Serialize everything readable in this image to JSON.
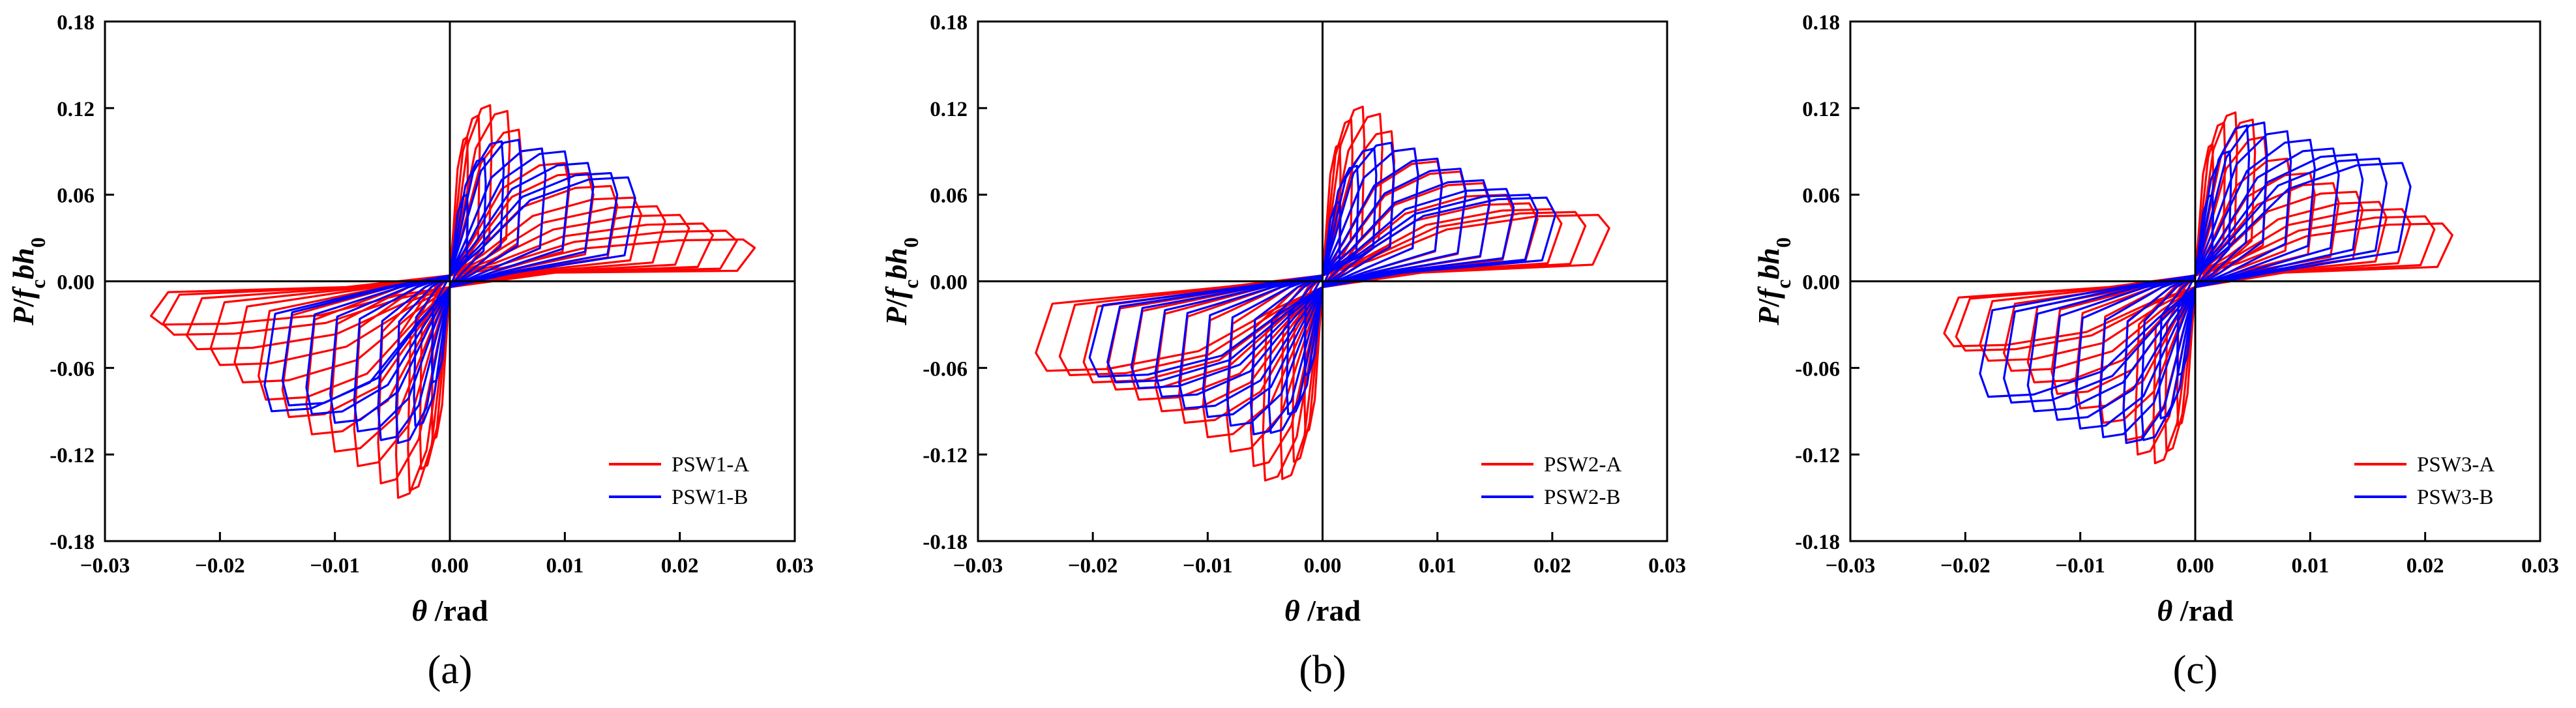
{
  "chart_data": [
    {
      "type": "line",
      "subplot_label": "a",
      "caption": "(a)",
      "ylabel": "P/f_c bh_0",
      "xlabel": "θ /rad",
      "xlabel_symbol": "θ",
      "xlabel_unit": " /rad",
      "ylabel_parts": {
        "P": "P",
        "slash": "/",
        "f": "f",
        "f_sub": "c",
        "bh": "bh",
        "h_sub": "0"
      },
      "xlim": [
        -0.03,
        0.03
      ],
      "ylim": [
        -0.18,
        0.18
      ],
      "xticks": [
        "−0.03",
        "−0.02",
        "−0.01",
        "0.00",
        "0.01",
        "0.02",
        "0.03"
      ],
      "yticks": [
        "0.18",
        "0.12",
        "0.06",
        "0.00",
        "-0.06",
        "-0.12",
        "-0.18"
      ],
      "legend_position": "bottom-right",
      "series": [
        {
          "name": "PSW1-A",
          "color": "#ff0000",
          "pos_peaks": [
            [
              0.0015,
              0.1
            ],
            [
              0.0025,
              0.115
            ],
            [
              0.0035,
              0.122
            ],
            [
              0.005,
              0.118
            ],
            [
              0.006,
              0.105
            ],
            [
              0.008,
              0.092
            ],
            [
              0.01,
              0.082
            ],
            [
              0.012,
              0.075
            ],
            [
              0.014,
              0.066
            ],
            [
              0.016,
              0.058
            ],
            [
              0.018,
              0.052
            ],
            [
              0.02,
              0.046
            ],
            [
              0.022,
              0.04
            ],
            [
              0.024,
              0.035
            ],
            [
              0.0255,
              0.029
            ]
          ],
          "neg_peaks": [
            [
              -0.0015,
              -0.11
            ],
            [
              -0.0025,
              -0.13
            ],
            [
              -0.0035,
              -0.145
            ],
            [
              -0.0045,
              -0.15
            ],
            [
              -0.006,
              -0.14
            ],
            [
              -0.008,
              -0.128
            ],
            [
              -0.01,
              -0.118
            ],
            [
              -0.012,
              -0.106
            ],
            [
              -0.014,
              -0.094
            ],
            [
              -0.016,
              -0.082
            ],
            [
              -0.018,
              -0.07
            ],
            [
              -0.02,
              -0.058
            ],
            [
              -0.022,
              -0.047
            ],
            [
              -0.024,
              -0.037
            ],
            [
              -0.025,
              -0.03
            ]
          ]
        },
        {
          "name": "PSW1-B",
          "color": "#0000ff",
          "pos_peaks": [
            [
              0.0015,
              0.06
            ],
            [
              0.003,
              0.085
            ],
            [
              0.0045,
              0.097
            ],
            [
              0.006,
              0.098
            ],
            [
              0.008,
              0.092
            ],
            [
              0.01,
              0.09
            ],
            [
              0.012,
              0.082
            ],
            [
              0.014,
              0.075
            ],
            [
              0.0155,
              0.072
            ]
          ],
          "neg_peaks": [
            [
              -0.0015,
              -0.07
            ],
            [
              -0.003,
              -0.1
            ],
            [
              -0.0045,
              -0.112
            ],
            [
              -0.006,
              -0.11
            ],
            [
              -0.008,
              -0.104
            ],
            [
              -0.01,
              -0.098
            ],
            [
              -0.012,
              -0.092
            ],
            [
              -0.014,
              -0.086
            ],
            [
              -0.0155,
              -0.09
            ]
          ]
        }
      ]
    },
    {
      "type": "line",
      "subplot_label": "b",
      "caption": "(b)",
      "ylabel": "P/f_c bh_0",
      "xlabel": "θ /rad",
      "xlabel_symbol": "θ",
      "xlabel_unit": " /rad",
      "ylabel_parts": {
        "P": "P",
        "slash": "/",
        "f": "f",
        "f_sub": "c",
        "bh": "bh",
        "h_sub": "0"
      },
      "xlim": [
        -0.03,
        0.03
      ],
      "ylim": [
        -0.18,
        0.18
      ],
      "xticks": [
        "−0.03",
        "−0.02",
        "−0.01",
        "0.00",
        "0.01",
        "0.02",
        "0.03"
      ],
      "yticks": [
        "0.18",
        "0.12",
        "0.06",
        "0.00",
        "-0.06",
        "-0.12",
        "-0.18"
      ],
      "legend_position": "bottom-right",
      "series": [
        {
          "name": "PSW2-A",
          "color": "#ff0000",
          "pos_peaks": [
            [
              0.0015,
              0.095
            ],
            [
              0.0025,
              0.112
            ],
            [
              0.0035,
              0.121
            ],
            [
              0.005,
              0.116
            ],
            [
              0.006,
              0.104
            ],
            [
              0.008,
              0.092
            ],
            [
              0.01,
              0.083
            ],
            [
              0.012,
              0.076
            ],
            [
              0.014,
              0.068
            ],
            [
              0.016,
              0.06
            ],
            [
              0.018,
              0.054
            ],
            [
              0.02,
              0.05
            ],
            [
              0.022,
              0.048
            ],
            [
              0.024,
              0.046
            ]
          ],
          "neg_peaks": [
            [
              -0.0015,
              -0.105
            ],
            [
              -0.0025,
              -0.125
            ],
            [
              -0.0035,
              -0.137
            ],
            [
              -0.005,
              -0.138
            ],
            [
              -0.006,
              -0.128
            ],
            [
              -0.008,
              -0.118
            ],
            [
              -0.01,
              -0.108
            ],
            [
              -0.012,
              -0.098
            ],
            [
              -0.014,
              -0.09
            ],
            [
              -0.016,
              -0.082
            ],
            [
              -0.018,
              -0.075
            ],
            [
              -0.02,
              -0.07
            ],
            [
              -0.022,
              -0.065
            ],
            [
              -0.024,
              -0.062
            ]
          ]
        },
        {
          "name": "PSW2-B",
          "color": "#0000ff",
          "pos_peaks": [
            [
              0.0015,
              0.055
            ],
            [
              0.003,
              0.08
            ],
            [
              0.0045,
              0.092
            ],
            [
              0.006,
              0.096
            ],
            [
              0.008,
              0.092
            ],
            [
              0.01,
              0.085
            ],
            [
              0.012,
              0.078
            ],
            [
              0.014,
              0.07
            ],
            [
              0.016,
              0.064
            ],
            [
              0.018,
              0.06
            ],
            [
              0.0195,
              0.058
            ]
          ],
          "neg_peaks": [
            [
              -0.0015,
              -0.065
            ],
            [
              -0.003,
              -0.092
            ],
            [
              -0.0045,
              -0.105
            ],
            [
              -0.006,
              -0.106
            ],
            [
              -0.008,
              -0.1
            ],
            [
              -0.01,
              -0.094
            ],
            [
              -0.012,
              -0.088
            ],
            [
              -0.014,
              -0.08
            ],
            [
              -0.016,
              -0.074
            ],
            [
              -0.018,
              -0.07
            ],
            [
              -0.0195,
              -0.066
            ]
          ]
        }
      ]
    },
    {
      "type": "line",
      "subplot_label": "c",
      "caption": "(c)",
      "ylabel": "P/f_c bh_0",
      "xlabel": "θ /rad",
      "xlabel_symbol": "θ",
      "xlabel_unit": " /rad",
      "ylabel_parts": {
        "P": "P",
        "slash": "/",
        "f": "f",
        "f_sub": "c",
        "bh": "bh",
        "h_sub": "0"
      },
      "xlim": [
        -0.03,
        0.03
      ],
      "ylim": [
        -0.18,
        0.18
      ],
      "xticks": [
        "−0.03",
        "−0.02",
        "−0.01",
        "0.00",
        "0.01",
        "0.02",
        "0.03"
      ],
      "yticks": [
        "0.18",
        "0.12",
        "0.06",
        "0.00",
        "-0.06",
        "-0.12",
        "-0.18"
      ],
      "legend_position": "bottom-right",
      "series": [
        {
          "name": "PSW3-A",
          "color": "#ff0000",
          "pos_peaks": [
            [
              0.0015,
              0.095
            ],
            [
              0.0025,
              0.11
            ],
            [
              0.0035,
              0.117
            ],
            [
              0.005,
              0.112
            ],
            [
              0.006,
              0.1
            ],
            [
              0.008,
              0.085
            ],
            [
              0.01,
              0.075
            ],
            [
              0.012,
              0.068
            ],
            [
              0.014,
              0.062
            ],
            [
              0.016,
              0.055
            ],
            [
              0.018,
              0.05
            ],
            [
              0.02,
              0.045
            ],
            [
              0.0215,
              0.04
            ]
          ],
          "neg_peaks": [
            [
              -0.0015,
              -0.1
            ],
            [
              -0.0025,
              -0.118
            ],
            [
              -0.0035,
              -0.126
            ],
            [
              -0.005,
              -0.12
            ],
            [
              -0.006,
              -0.11
            ],
            [
              -0.008,
              -0.098
            ],
            [
              -0.01,
              -0.088
            ],
            [
              -0.012,
              -0.078
            ],
            [
              -0.014,
              -0.07
            ],
            [
              -0.016,
              -0.062
            ],
            [
              -0.018,
              -0.055
            ],
            [
              -0.02,
              -0.048
            ],
            [
              -0.021,
              -0.045
            ]
          ]
        },
        {
          "name": "PSW3-B",
          "color": "#0000ff",
          "pos_peaks": [
            [
              0.0015,
              0.06
            ],
            [
              0.003,
              0.09
            ],
            [
              0.0045,
              0.108
            ],
            [
              0.006,
              0.11
            ],
            [
              0.008,
              0.104
            ],
            [
              0.01,
              0.098
            ],
            [
              0.012,
              0.092
            ],
            [
              0.014,
              0.088
            ],
            [
              0.016,
              0.085
            ],
            [
              0.018,
              0.082
            ]
          ],
          "neg_peaks": [
            [
              -0.0015,
              -0.065
            ],
            [
              -0.003,
              -0.095
            ],
            [
              -0.0045,
              -0.11
            ],
            [
              -0.006,
              -0.112
            ],
            [
              -0.008,
              -0.108
            ],
            [
              -0.01,
              -0.102
            ],
            [
              -0.012,
              -0.096
            ],
            [
              -0.014,
              -0.09
            ],
            [
              -0.016,
              -0.084
            ],
            [
              -0.018,
              -0.08
            ]
          ]
        }
      ]
    }
  ]
}
